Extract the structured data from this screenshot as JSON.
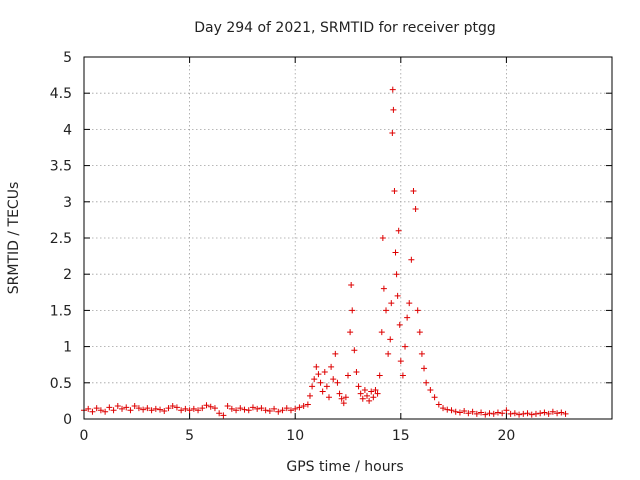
{
  "chart_data": {
    "type": "scatter",
    "title": "Day 294 of 2021, SRMTID for receiver ptgg",
    "xlabel": "GPS time / hours",
    "ylabel": "SRMTID / TECUs",
    "xlim": [
      0,
      25
    ],
    "ylim": [
      0,
      5
    ],
    "xticks": [
      "0",
      "5",
      "10",
      "15",
      "20"
    ],
    "xtick_values": [
      0,
      5,
      10,
      15,
      20
    ],
    "yticks": [
      "0",
      "0.5",
      "1",
      "1.5",
      "2",
      "2.5",
      "3",
      "3.5",
      "4",
      "4.5",
      "5"
    ],
    "ytick_values": [
      0,
      0.5,
      1,
      1.5,
      2,
      2.5,
      3,
      3.5,
      4,
      4.5,
      5
    ],
    "grid": true,
    "marker": "+",
    "color": "#dd0000",
    "series": [
      {
        "name": "SRMTID",
        "points": [
          [
            0.0,
            0.12
          ],
          [
            0.2,
            0.14
          ],
          [
            0.4,
            0.1
          ],
          [
            0.6,
            0.15
          ],
          [
            0.8,
            0.12
          ],
          [
            1.0,
            0.1
          ],
          [
            1.2,
            0.16
          ],
          [
            1.4,
            0.12
          ],
          [
            1.6,
            0.18
          ],
          [
            1.8,
            0.14
          ],
          [
            2.0,
            0.16
          ],
          [
            2.2,
            0.12
          ],
          [
            2.4,
            0.18
          ],
          [
            2.6,
            0.15
          ],
          [
            2.8,
            0.13
          ],
          [
            3.0,
            0.15
          ],
          [
            3.2,
            0.12
          ],
          [
            3.4,
            0.14
          ],
          [
            3.6,
            0.13
          ],
          [
            3.8,
            0.11
          ],
          [
            4.0,
            0.15
          ],
          [
            4.2,
            0.18
          ],
          [
            4.4,
            0.16
          ],
          [
            4.6,
            0.12
          ],
          [
            4.8,
            0.14
          ],
          [
            5.0,
            0.12
          ],
          [
            5.2,
            0.14
          ],
          [
            5.4,
            0.12
          ],
          [
            5.6,
            0.15
          ],
          [
            5.8,
            0.19
          ],
          [
            6.0,
            0.17
          ],
          [
            6.2,
            0.15
          ],
          [
            6.4,
            0.08
          ],
          [
            6.6,
            0.05
          ],
          [
            6.8,
            0.18
          ],
          [
            7.0,
            0.14
          ],
          [
            7.2,
            0.12
          ],
          [
            7.4,
            0.15
          ],
          [
            7.6,
            0.13
          ],
          [
            7.8,
            0.12
          ],
          [
            8.0,
            0.16
          ],
          [
            8.2,
            0.14
          ],
          [
            8.4,
            0.15
          ],
          [
            8.6,
            0.12
          ],
          [
            8.8,
            0.11
          ],
          [
            9.0,
            0.14
          ],
          [
            9.2,
            0.1
          ],
          [
            9.4,
            0.12
          ],
          [
            9.6,
            0.15
          ],
          [
            9.8,
            0.12
          ],
          [
            10.0,
            0.14
          ],
          [
            10.2,
            0.16
          ],
          [
            10.4,
            0.18
          ],
          [
            10.6,
            0.2
          ],
          [
            10.7,
            0.32
          ],
          [
            10.8,
            0.45
          ],
          [
            10.9,
            0.55
          ],
          [
            11.0,
            0.72
          ],
          [
            11.1,
            0.62
          ],
          [
            11.2,
            0.5
          ],
          [
            11.3,
            0.38
          ],
          [
            11.4,
            0.65
          ],
          [
            11.5,
            0.45
          ],
          [
            11.6,
            0.3
          ],
          [
            11.7,
            0.72
          ],
          [
            11.8,
            0.55
          ],
          [
            11.9,
            0.9
          ],
          [
            12.0,
            0.5
          ],
          [
            12.1,
            0.35
          ],
          [
            12.2,
            0.28
          ],
          [
            12.3,
            0.22
          ],
          [
            12.4,
            0.3
          ],
          [
            12.5,
            0.6
          ],
          [
            12.6,
            1.2
          ],
          [
            12.65,
            1.85
          ],
          [
            12.7,
            1.5
          ],
          [
            12.8,
            0.95
          ],
          [
            12.9,
            0.65
          ],
          [
            13.0,
            0.45
          ],
          [
            13.1,
            0.35
          ],
          [
            13.2,
            0.28
          ],
          [
            13.3,
            0.4
          ],
          [
            13.4,
            0.32
          ],
          [
            13.5,
            0.25
          ],
          [
            13.6,
            0.38
          ],
          [
            13.7,
            0.3
          ],
          [
            13.8,
            0.4
          ],
          [
            13.9,
            0.35
          ],
          [
            14.0,
            0.6
          ],
          [
            14.1,
            1.2
          ],
          [
            14.15,
            2.5
          ],
          [
            14.2,
            1.8
          ],
          [
            14.3,
            1.5
          ],
          [
            14.4,
            0.9
          ],
          [
            14.5,
            1.1
          ],
          [
            14.55,
            1.6
          ],
          [
            14.6,
            3.95
          ],
          [
            14.62,
            4.55
          ],
          [
            14.65,
            4.27
          ],
          [
            14.7,
            3.15
          ],
          [
            14.75,
            2.3
          ],
          [
            14.8,
            2.0
          ],
          [
            14.85,
            1.7
          ],
          [
            14.9,
            2.6
          ],
          [
            14.95,
            1.3
          ],
          [
            15.0,
            0.8
          ],
          [
            15.1,
            0.6
          ],
          [
            15.2,
            1.0
          ],
          [
            15.3,
            1.4
          ],
          [
            15.4,
            1.6
          ],
          [
            15.5,
            2.2
          ],
          [
            15.6,
            3.15
          ],
          [
            15.7,
            2.9
          ],
          [
            15.8,
            1.5
          ],
          [
            15.9,
            1.2
          ],
          [
            16.0,
            0.9
          ],
          [
            16.1,
            0.7
          ],
          [
            16.2,
            0.5
          ],
          [
            16.4,
            0.4
          ],
          [
            16.6,
            0.3
          ],
          [
            16.8,
            0.2
          ],
          [
            17.0,
            0.15
          ],
          [
            17.2,
            0.13
          ],
          [
            17.4,
            0.12
          ],
          [
            17.6,
            0.1
          ],
          [
            17.8,
            0.09
          ],
          [
            18.0,
            0.11
          ],
          [
            18.2,
            0.08
          ],
          [
            18.4,
            0.1
          ],
          [
            18.6,
            0.07
          ],
          [
            18.8,
            0.09
          ],
          [
            19.0,
            0.06
          ],
          [
            19.2,
            0.08
          ],
          [
            19.4,
            0.07
          ],
          [
            19.6,
            0.09
          ],
          [
            19.8,
            0.08
          ],
          [
            20.0,
            0.12
          ],
          [
            20.2,
            0.07
          ],
          [
            20.4,
            0.08
          ],
          [
            20.6,
            0.06
          ],
          [
            20.8,
            0.07
          ],
          [
            21.0,
            0.08
          ],
          [
            21.2,
            0.06
          ],
          [
            21.4,
            0.07
          ],
          [
            21.6,
            0.08
          ],
          [
            21.8,
            0.09
          ],
          [
            22.0,
            0.07
          ],
          [
            22.2,
            0.1
          ],
          [
            22.4,
            0.08
          ],
          [
            22.6,
            0.09
          ],
          [
            22.8,
            0.07
          ]
        ]
      }
    ]
  }
}
